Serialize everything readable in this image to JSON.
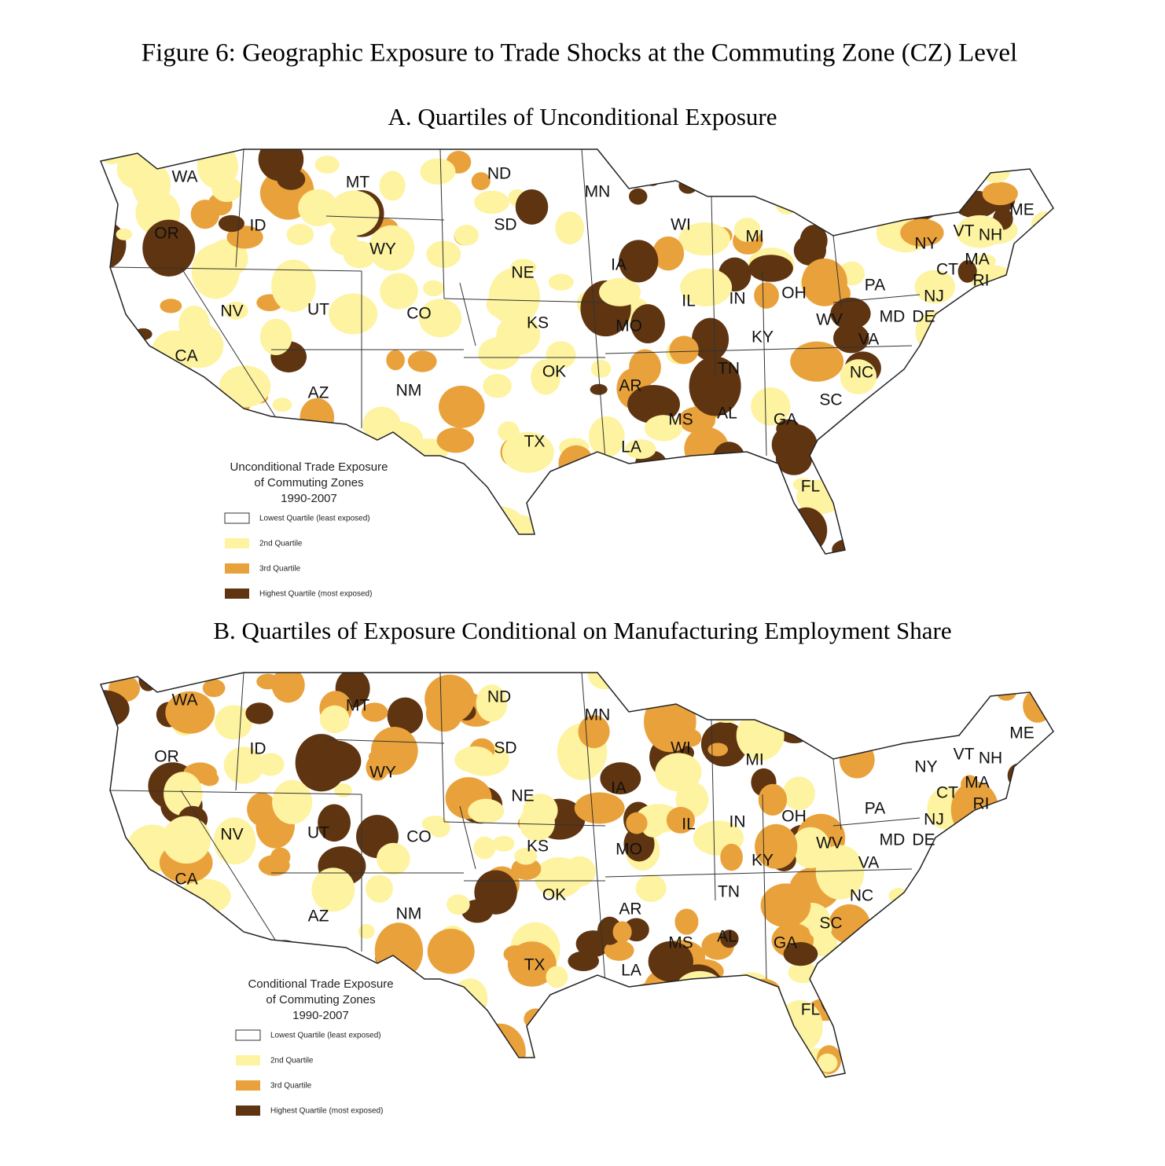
{
  "title": "Figure 6: Geographic Exposure to Trade Shocks at the Commuting Zone (CZ) Level",
  "states": [
    "WA",
    "MT",
    "ND",
    "MN",
    "OR",
    "ID",
    "SD",
    "WI",
    "MI",
    "ME",
    "WY",
    "NY",
    "VT",
    "NH",
    "IA",
    "NE",
    "MA",
    "CT",
    "RI",
    "PA",
    "NV",
    "UT",
    "CO",
    "IL",
    "IN",
    "OH",
    "NJ",
    "KS",
    "MO",
    "WV",
    "MD",
    "DE",
    "VA",
    "KY",
    "CA",
    "TN",
    "OK",
    "NC",
    "AR",
    "AZ",
    "NM",
    "SC",
    "MS",
    "AL",
    "GA",
    "TX",
    "LA",
    "FL"
  ],
  "panels": [
    {
      "title": "A. Quartiles of Unconditional Exposure",
      "legend_title": [
        "Unconditional Trade Exposure",
        "of Commuting Zones",
        "1990-2007"
      ],
      "legend": [
        {
          "label": "Lowest Quartile (least exposed)",
          "color": "#ffffff"
        },
        {
          "label": "2nd Quartile",
          "color": "#fdf3a0"
        },
        {
          "label": "3rd Quartile",
          "color": "#e9a23b"
        },
        {
          "label": "Highest Quartile (most exposed)",
          "color": "#5e3411"
        }
      ]
    },
    {
      "title": "B. Quartiles of Exposure Conditional on Manufacturing Employment Share",
      "legend_title": [
        "Conditional Trade Exposure",
        "of Commuting Zones",
        "1990-2007"
      ],
      "legend": [
        {
          "label": "Lowest Quartile (least exposed)",
          "color": "#ffffff"
        },
        {
          "label": "2nd Quartile",
          "color": "#fdf3a0"
        },
        {
          "label": "3rd Quartile",
          "color": "#e9a23b"
        },
        {
          "label": "Highest Quartile (most exposed)",
          "color": "#5e3411"
        }
      ]
    }
  ]
}
